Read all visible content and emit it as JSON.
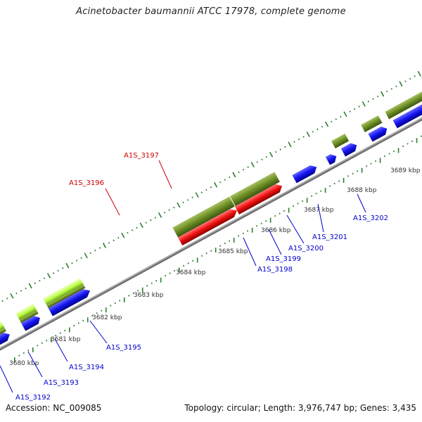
{
  "title": "Acinetobacter baumannii ATCC 17978, complete genome",
  "footer": {
    "accession": "Accession: NC_009085",
    "topology": "Topology: circular; Length: 3,976,747 bp; Genes: 3,435"
  },
  "scale_labels": [
    "3680 kbp",
    "3681 kbp",
    "3682 kbp",
    "3683 kbp",
    "3684 kbp",
    "3685 kbp",
    "3686 kbp",
    "3687 kbp",
    "3688 kbp",
    "3689 kbp"
  ],
  "gene_labels": [
    {
      "text": "A1S_3192",
      "color": "#0000cc"
    },
    {
      "text": "A1S_3193",
      "color": "#0000cc"
    },
    {
      "text": "A1S_3194",
      "color": "#0000cc"
    },
    {
      "text": "A1S_3195",
      "color": "#0000cc"
    },
    {
      "text": "A1S_3196",
      "color": "#cc0000"
    },
    {
      "text": "A1S_3197",
      "color": "#cc0000"
    },
    {
      "text": "A1S_3198",
      "color": "#0000cc"
    },
    {
      "text": "A1S_3199",
      "color": "#0000cc"
    },
    {
      "text": "A1S_3200",
      "color": "#0000cc"
    },
    {
      "text": "A1S_3201",
      "color": "#0000cc"
    },
    {
      "text": "A1S_3202",
      "color": "#0000cc"
    }
  ],
  "colors": {
    "forward_cds": "#1010ee",
    "reverse_cds": "#ee1111",
    "gene_olive": "#6b8e23",
    "gene_lime": "#adff2f",
    "backbone": "#888888",
    "ticks": "#2e7d2e"
  }
}
